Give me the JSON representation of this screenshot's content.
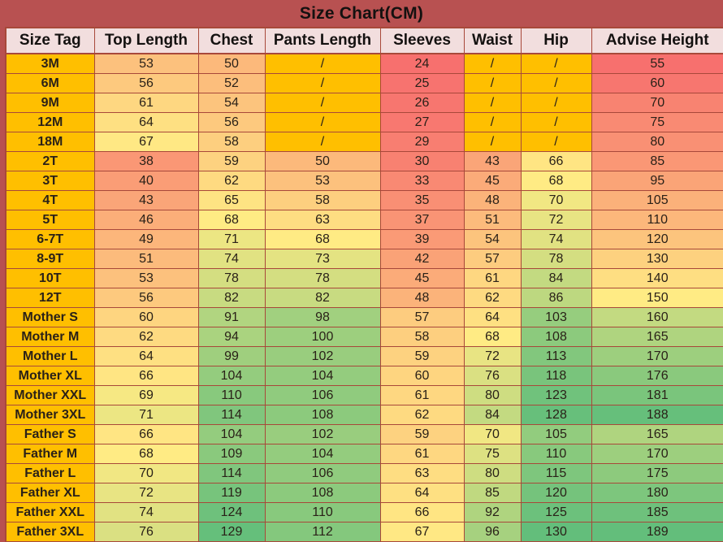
{
  "title": "Size Chart(CM)",
  "colors": {
    "page_bg": "#b85151",
    "title_bg": "#b85151",
    "title_text": "#141110",
    "header_bg": "#f2dede",
    "header_text": "#141110",
    "tag_cell_bg": "#ffbf00",
    "slash_cell_bg": "#ffbf00",
    "border": "#a8483a",
    "cell_text": "#2a2118",
    "scale_red": "#f7706e",
    "scale_yellow": "#ffeb84",
    "scale_green": "#63be7b"
  },
  "chart_data": {
    "type": "table",
    "title": "Size Chart(CM)",
    "columns": [
      "Size Tag",
      "Top Length",
      "Chest",
      "Pants Length",
      "Sleeves",
      "Waist",
      "Hip",
      "Advise Height"
    ],
    "value_column_names": [
      "Top Length",
      "Chest",
      "Pants Length",
      "Sleeves",
      "Waist",
      "Hip",
      "Advise Height"
    ],
    "missing_value_symbol": "/",
    "rows": [
      {
        "tag": "3M",
        "values": [
          53,
          50,
          "/",
          24,
          "/",
          "/",
          55
        ]
      },
      {
        "tag": "6M",
        "values": [
          56,
          52,
          "/",
          25,
          "/",
          "/",
          60
        ]
      },
      {
        "tag": "9M",
        "values": [
          61,
          54,
          "/",
          26,
          "/",
          "/",
          70
        ]
      },
      {
        "tag": "12M",
        "values": [
          64,
          56,
          "/",
          27,
          "/",
          "/",
          75
        ]
      },
      {
        "tag": "18M",
        "values": [
          67,
          58,
          "/",
          29,
          "/",
          "/",
          80
        ]
      },
      {
        "tag": "2T",
        "values": [
          38,
          59,
          50,
          30,
          43,
          66,
          85
        ]
      },
      {
        "tag": "3T",
        "values": [
          40,
          62,
          53,
          33,
          45,
          68,
          95
        ]
      },
      {
        "tag": "4T",
        "values": [
          43,
          65,
          58,
          35,
          48,
          70,
          105
        ]
      },
      {
        "tag": "5T",
        "values": [
          46,
          68,
          63,
          37,
          51,
          72,
          110
        ]
      },
      {
        "tag": "6-7T",
        "values": [
          49,
          71,
          68,
          39,
          54,
          74,
          120
        ]
      },
      {
        "tag": "8-9T",
        "values": [
          51,
          74,
          73,
          42,
          57,
          78,
          130
        ]
      },
      {
        "tag": "10T",
        "values": [
          53,
          78,
          78,
          45,
          61,
          84,
          140
        ]
      },
      {
        "tag": "12T",
        "values": [
          56,
          82,
          82,
          48,
          62,
          86,
          150
        ]
      },
      {
        "tag": "Mother S",
        "values": [
          60,
          91,
          98,
          57,
          64,
          103,
          160
        ]
      },
      {
        "tag": "Mother M",
        "values": [
          62,
          94,
          100,
          58,
          68,
          108,
          165
        ]
      },
      {
        "tag": "Mother L",
        "values": [
          64,
          99,
          102,
          59,
          72,
          113,
          170
        ]
      },
      {
        "tag": "Mother XL",
        "values": [
          66,
          104,
          104,
          60,
          76,
          118,
          176
        ]
      },
      {
        "tag": "Mother XXL",
        "values": [
          69,
          110,
          106,
          61,
          80,
          123,
          181
        ]
      },
      {
        "tag": "Mother 3XL",
        "values": [
          71,
          114,
          108,
          62,
          84,
          128,
          188
        ]
      },
      {
        "tag": "Father S",
        "values": [
          66,
          104,
          102,
          59,
          70,
          105,
          165
        ]
      },
      {
        "tag": "Father M",
        "values": [
          68,
          109,
          104,
          61,
          75,
          110,
          170
        ]
      },
      {
        "tag": "Father L",
        "values": [
          70,
          114,
          106,
          63,
          80,
          115,
          175
        ]
      },
      {
        "tag": "Father XL",
        "values": [
          72,
          119,
          108,
          64,
          85,
          120,
          180
        ]
      },
      {
        "tag": "Father XXL",
        "values": [
          74,
          124,
          110,
          66,
          92,
          125,
          185
        ]
      },
      {
        "tag": "Father 3XL",
        "values": [
          76,
          129,
          112,
          67,
          96,
          130,
          189
        ]
      }
    ],
    "color_scales": {
      "measurements": {
        "applies_to_value_columns": [
          0,
          1,
          2,
          3,
          4,
          5
        ],
        "min": 24,
        "mid": 68,
        "max": 130
      },
      "advise_height": {
        "applies_to_value_columns": [
          6
        ],
        "min": 55,
        "mid": 150,
        "max": 189
      }
    },
    "layout_hints": {
      "heatmap": true,
      "scale_stops": [
        "red",
        "yellow",
        "green"
      ],
      "tag_column_fill": "gold",
      "missing_cells_fill": "gold"
    }
  }
}
